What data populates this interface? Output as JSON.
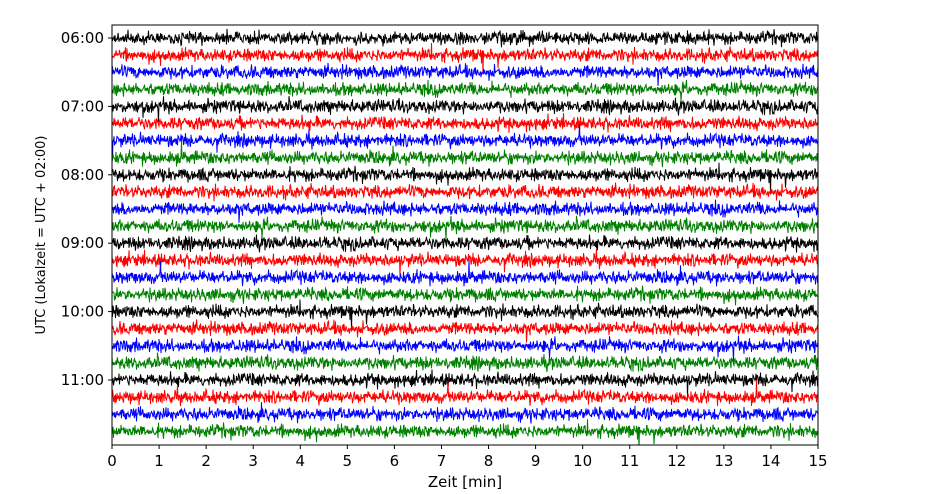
{
  "chart_data": {
    "type": "line",
    "subtype": "helicorder",
    "title": "",
    "xlabel": "Zeit  [min]",
    "ylabel": "UTC (Lokalzeit = UTC + 02:00)",
    "xlim": [
      0,
      15
    ],
    "x_ticks": [
      "0",
      "1",
      "2",
      "3",
      "4",
      "5",
      "6",
      "7",
      "8",
      "9",
      "10",
      "11",
      "12",
      "13",
      "14",
      "15"
    ],
    "y_ticks": [
      "06:00",
      "07:00",
      "08:00",
      "09:00",
      "10:00",
      "11:00"
    ],
    "minutes_per_line": 15,
    "color_cycle": [
      "#000000",
      "#ff0000",
      "#0000ff",
      "#008000"
    ],
    "traces": [
      {
        "start": "06:00",
        "color": "#000000"
      },
      {
        "start": "06:15",
        "color": "#ff0000"
      },
      {
        "start": "06:30",
        "color": "#0000ff"
      },
      {
        "start": "06:45",
        "color": "#008000"
      },
      {
        "start": "07:00",
        "color": "#000000"
      },
      {
        "start": "07:15",
        "color": "#ff0000"
      },
      {
        "start": "07:30",
        "color": "#0000ff"
      },
      {
        "start": "07:45",
        "color": "#008000"
      },
      {
        "start": "08:00",
        "color": "#000000"
      },
      {
        "start": "08:15",
        "color": "#ff0000"
      },
      {
        "start": "08:30",
        "color": "#0000ff"
      },
      {
        "start": "08:45",
        "color": "#008000"
      },
      {
        "start": "09:00",
        "color": "#000000"
      },
      {
        "start": "09:15",
        "color": "#ff0000"
      },
      {
        "start": "09:30",
        "color": "#0000ff"
      },
      {
        "start": "09:45",
        "color": "#008000"
      },
      {
        "start": "10:00",
        "color": "#000000"
      },
      {
        "start": "10:15",
        "color": "#ff0000"
      },
      {
        "start": "10:30",
        "color": "#0000ff"
      },
      {
        "start": "10:45",
        "color": "#008000"
      },
      {
        "start": "11:00",
        "color": "#000000"
      },
      {
        "start": "11:15",
        "color": "#ff0000"
      },
      {
        "start": "11:30",
        "color": "#0000ff"
      },
      {
        "start": "11:45",
        "color": "#008000"
      }
    ]
  }
}
